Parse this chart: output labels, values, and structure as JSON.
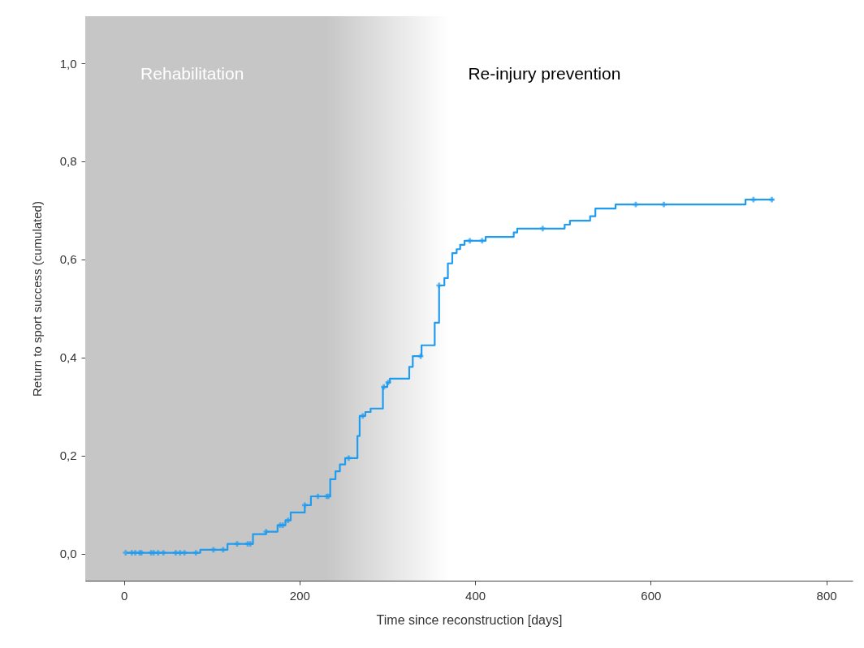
{
  "chart_data": {
    "type": "step",
    "xlabel": "Time since reconstruction [days]",
    "ylabel": "Return to sport success (cumulated)",
    "xlim": [
      -44,
      830
    ],
    "xticks": [
      0,
      200,
      400,
      600,
      800
    ],
    "ylim": [
      -0.055,
      1.096
    ],
    "yticks": [
      {
        "value": 0,
        "label": "0,0"
      },
      {
        "value": 0.2,
        "label": "0,2"
      },
      {
        "value": 0.4,
        "label": "0,4"
      },
      {
        "value": 0.6,
        "label": "0,6"
      },
      {
        "value": 0.8,
        "label": "0,8"
      },
      {
        "value": 1.0,
        "label": "1,0"
      }
    ],
    "grid": false,
    "bands": [
      {
        "axis": "x",
        "from": -44,
        "to": 370,
        "label": "Rehabilitation",
        "color": "#c6c6c6"
      }
    ],
    "annotations": [
      "Re-injury prevention"
    ],
    "series": [
      {
        "color": "#1f9bef",
        "x": [
          3,
          87,
          118,
          147,
          162,
          175,
          184,
          190,
          206,
          213,
          235,
          241,
          246,
          252,
          266,
          268.5,
          275,
          281,
          295,
          300,
          303,
          325,
          329,
          339,
          354,
          359,
          365,
          369,
          374,
          379,
          383,
          388,
          412,
          444,
          448,
          502,
          508,
          531,
          537,
          560,
          708,
          740
        ],
        "values": [
          0.002,
          0.008,
          0.02,
          0.04,
          0.045,
          0.058,
          0.068,
          0.084,
          0.099,
          0.117,
          0.152,
          0.168,
          0.182,
          0.195,
          0.24,
          0.281,
          0.289,
          0.296,
          0.34,
          0.349,
          0.357,
          0.381,
          0.403,
          0.425,
          0.471,
          0.547,
          0.562,
          0.592,
          0.613,
          0.621,
          0.63,
          0.638,
          0.646,
          0.655,
          0.663,
          0.671,
          0.679,
          0.688,
          0.704,
          0.712,
          0.722,
          0.722
        ]
      },
      {
        "type": "scatter",
        "marker": "cross",
        "color": "#1f9bef",
        "x": [
          2,
          9,
          13,
          18,
          20,
          31,
          34,
          39,
          45,
          59,
          64,
          69,
          82,
          102,
          113,
          129,
          141,
          144,
          162,
          178,
          181,
          187,
          206,
          221,
          231,
          233,
          256,
          272,
          296,
          301,
          338,
          359,
          394,
          408,
          477,
          583,
          615,
          717,
          738
        ],
        "values": [
          0.002,
          0.002,
          0.002,
          0.002,
          0.002,
          0.002,
          0.002,
          0.002,
          0.002,
          0.002,
          0.002,
          0.002,
          0.002,
          0.008,
          0.008,
          0.02,
          0.02,
          0.02,
          0.045,
          0.058,
          0.058,
          0.068,
          0.099,
          0.117,
          0.117,
          0.117,
          0.195,
          0.281,
          0.34,
          0.349,
          0.403,
          0.547,
          0.638,
          0.638,
          0.663,
          0.712,
          0.712,
          0.722,
          0.722
        ]
      }
    ]
  }
}
